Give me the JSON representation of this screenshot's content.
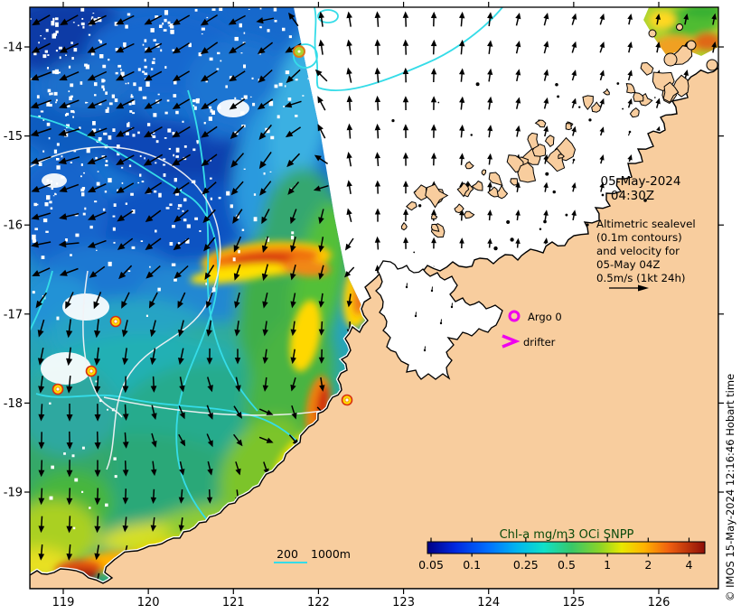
{
  "title_block": {
    "date": "05-May-2024",
    "time": "04:30Z"
  },
  "annotation": {
    "lines": [
      "Altimetric sealevel",
      "(0.1m contours)",
      "and velocity for",
      "05-May 04Z",
      "0.5m/s (1kt 24h)"
    ]
  },
  "markers": {
    "argo_label": "Argo 0",
    "drifter_label": "drifter"
  },
  "scalebar": {
    "label_200": "200",
    "label_1000": "1000m"
  },
  "colorbar": {
    "title": "Chl-a mg/m3 OCi SNPP",
    "tick_labels": [
      "0.05",
      "0.1",
      "0.25",
      "0.5",
      "1",
      "2",
      "4"
    ],
    "tick_values": [
      0.05,
      0.1,
      0.25,
      0.5,
      1,
      2,
      4
    ]
  },
  "axes": {
    "x_tick_labels": [
      "119",
      "120",
      "121",
      "122",
      "123",
      "124",
      "125",
      "126"
    ],
    "x_tick_values": [
      119,
      120,
      121,
      122,
      123,
      124,
      125,
      126
    ],
    "y_tick_labels": [
      "-14",
      "-15",
      "-16",
      "-17",
      "-18",
      "-19"
    ],
    "y_tick_values": [
      -14,
      -15,
      -16,
      -17,
      -18,
      -19
    ]
  },
  "copyright": "© IMOS 15-May-2024 12:16:46 Hobart time",
  "colors": {
    "land": "#f8cd9e",
    "no_data_ocean": "#ffffff",
    "bathy_contour": "#35dce8",
    "ssh_contour": "#f2f2f6",
    "marker_magenta": "#ee00ee",
    "colorbar_title": "#0a4a0a",
    "frame": "#000000"
  }
}
